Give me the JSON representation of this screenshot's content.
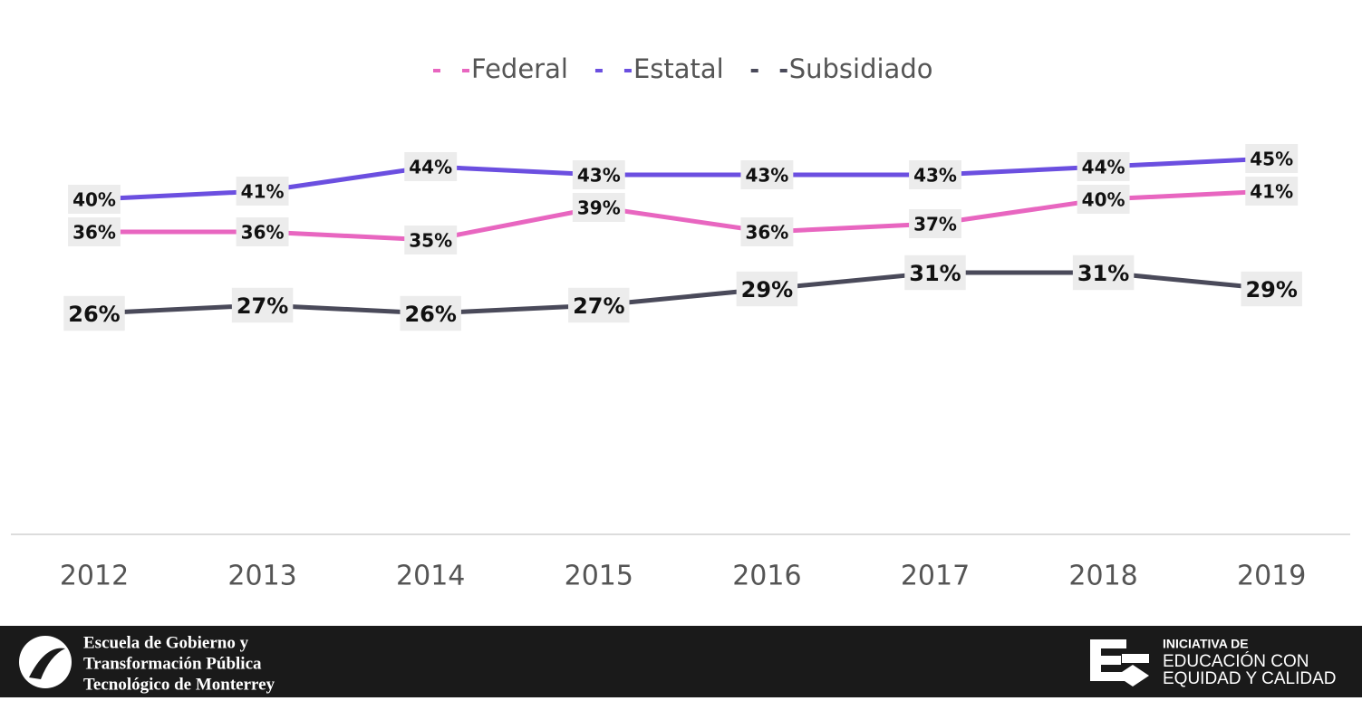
{
  "chart_data": {
    "type": "line",
    "categories": [
      "2012",
      "2013",
      "2014",
      "2015",
      "2016",
      "2017",
      "2018",
      "2019"
    ],
    "series": [
      {
        "name": "Federal",
        "color": "#e866c0",
        "values": [
          36,
          36,
          35,
          39,
          36,
          37,
          40,
          41
        ],
        "value_labels": [
          "36%",
          "36%",
          "35%",
          "39%",
          "36%",
          "37%",
          "40%",
          "41%"
        ]
      },
      {
        "name": "Estatal",
        "color": "#6b4fe0",
        "values": [
          40,
          41,
          44,
          43,
          43,
          43,
          44,
          45
        ],
        "value_labels": [
          "40%",
          "41%",
          "44%",
          "43%",
          "43%",
          "43%",
          "44%",
          "45%"
        ]
      },
      {
        "name": "Subsidiado",
        "color": "#4a4a5a",
        "values": [
          26,
          27,
          26,
          27,
          29,
          31,
          31,
          29
        ],
        "value_labels": [
          "26%",
          "27%",
          "26%",
          "27%",
          "29%",
          "31%",
          "31%",
          "29%"
        ]
      }
    ],
    "legend": "top"
  },
  "footer": {
    "left": [
      "Escuela de Gobierno y",
      "Transformación Pública",
      "Tecnológico de Monterrey"
    ],
    "right": [
      "INICIATIVA DE",
      "EDUCACIÓN CON",
      "EQUIDAD Y CALIDAD"
    ]
  }
}
